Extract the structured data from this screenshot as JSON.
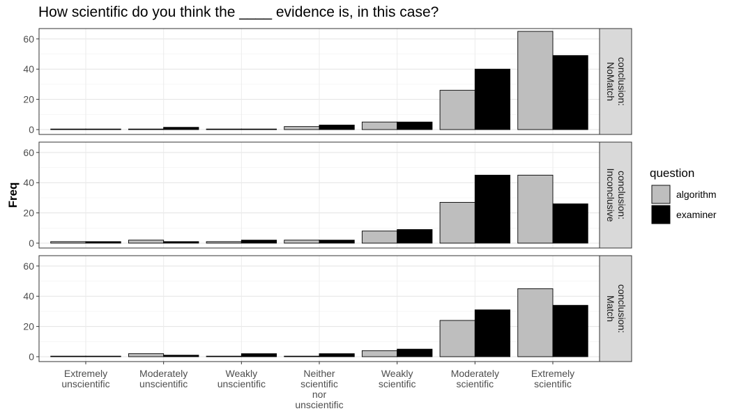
{
  "chart_data": {
    "type": "bar",
    "title": "How scientific do you think the ____ evidence is, in this case?",
    "ylabel": "Freq",
    "xlabel": "",
    "ylim": [
      0,
      65
    ],
    "yticks": [
      0,
      20,
      40,
      60
    ],
    "grid": true,
    "legend_placement": "right",
    "legend": {
      "title": "question"
    },
    "categories": [
      "Extremely\nunscientific",
      "Moderately\nunscientific",
      "Weakly\nunscientific",
      "Neither\nscientific\nnor\nunscientific",
      "Weakly\nscientific",
      "Moderately\nscientific",
      "Extremely\nscientific"
    ],
    "series_styles": [
      {
        "name": "algorithm",
        "color": "#bebebe"
      },
      {
        "name": "examiner",
        "color": "#000000"
      }
    ],
    "facets": [
      {
        "label": "conclusion:\nNoMatch",
        "series": [
          {
            "name": "algorithm",
            "values": [
              0,
              0,
              0,
              2,
              5,
              26,
              65
            ]
          },
          {
            "name": "examiner",
            "values": [
              0,
              1.5,
              0,
              3,
              5,
              40,
              49
            ]
          }
        ]
      },
      {
        "label": "conclusion:\nInconclusive",
        "series": [
          {
            "name": "algorithm",
            "values": [
              1,
              2,
              1,
              2,
              8,
              27,
              45
            ]
          },
          {
            "name": "examiner",
            "values": [
              1,
              1,
              2,
              2,
              9,
              45,
              26
            ]
          }
        ]
      },
      {
        "label": "conclusion:\nMatch",
        "series": [
          {
            "name": "algorithm",
            "values": [
              0,
              2,
              0,
              0,
              4,
              24,
              45
            ]
          },
          {
            "name": "examiner",
            "values": [
              0,
              1,
              2,
              2,
              5,
              31,
              34
            ]
          }
        ]
      }
    ]
  }
}
